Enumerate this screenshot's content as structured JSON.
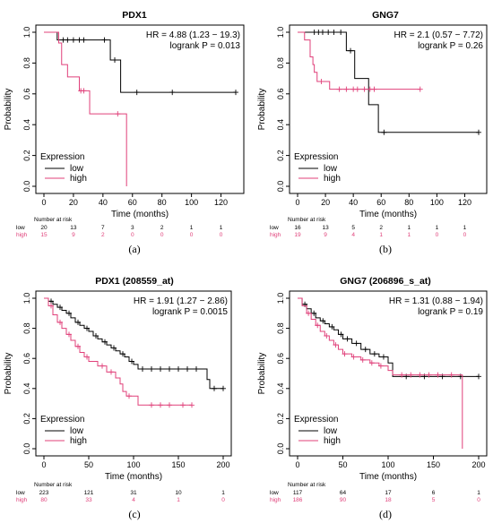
{
  "colors": {
    "low": "#000000",
    "high": "#e0407a"
  },
  "chart_data": [
    {
      "type": "line",
      "title": "PDX1",
      "caption": "(a)",
      "xlabel": "Time (months)",
      "ylabel": "Probability",
      "xlim": [
        0,
        130
      ],
      "ylim": [
        0,
        1
      ],
      "xticks": [
        0,
        20,
        40,
        60,
        80,
        100,
        120
      ],
      "yticks": [
        "0.0",
        "0.2",
        "0.4",
        "0.6",
        "0.8",
        "1.0"
      ],
      "hr_text": "HR = 4.88 (1.23 − 19.3)",
      "logrank_text": "logrank P = 0.013",
      "legend_title": "Expression",
      "risk_header": "Number at risk",
      "risk_times": [
        0,
        20,
        40,
        60,
        80,
        100,
        120
      ],
      "series": [
        {
          "name": "low",
          "color": "#000000",
          "steps": [
            [
              0,
              1.0
            ],
            [
              9,
              0.95
            ],
            [
              45,
              0.82
            ],
            [
              52,
              0.61
            ],
            [
              130,
              0.61
            ]
          ],
          "censors": [
            [
              13,
              0.95
            ],
            [
              16,
              0.95
            ],
            [
              20,
              0.95
            ],
            [
              24,
              0.95
            ],
            [
              27,
              0.95
            ],
            [
              41,
              0.95
            ],
            [
              48,
              0.82
            ],
            [
              63,
              0.61
            ],
            [
              87,
              0.61
            ],
            [
              130,
              0.61
            ]
          ],
          "risk": [
            "20",
            "13",
            "7",
            "3",
            "2",
            "1",
            "1"
          ]
        },
        {
          "name": "high",
          "color": "#e0407a",
          "steps": [
            [
              0,
              1.0
            ],
            [
              10,
              0.93
            ],
            [
              12,
              0.79
            ],
            [
              16,
              0.71
            ],
            [
              24,
              0.62
            ],
            [
              31,
              0.47
            ],
            [
              56,
              0.0
            ]
          ],
          "censors": [
            [
              25,
              0.62
            ],
            [
              27,
              0.62
            ],
            [
              50,
              0.47
            ]
          ],
          "risk": [
            "15",
            "9",
            "2",
            "0",
            "0",
            "0",
            "0"
          ]
        }
      ]
    },
    {
      "type": "line",
      "title": "GNG7",
      "caption": "(b)",
      "xlabel": "Time (months)",
      "ylabel": "Probability",
      "xlim": [
        0,
        130
      ],
      "ylim": [
        0,
        1
      ],
      "xticks": [
        0,
        20,
        40,
        60,
        80,
        100,
        120
      ],
      "yticks": [
        "0.0",
        "0.2",
        "0.4",
        "0.6",
        "0.8",
        "1.0"
      ],
      "hr_text": "HR = 2.1 (0.57 − 7.72)",
      "logrank_text": "logrank P = 0.26",
      "legend_title": "Expression",
      "risk_header": "Number at risk",
      "risk_times": [
        0,
        20,
        40,
        60,
        80,
        100,
        120
      ],
      "series": [
        {
          "name": "low",
          "color": "#000000",
          "steps": [
            [
              0,
              1.0
            ],
            [
              35,
              0.88
            ],
            [
              41,
              0.7
            ],
            [
              51,
              0.53
            ],
            [
              58,
              0.35
            ],
            [
              130,
              0.35
            ]
          ],
          "censors": [
            [
              12,
              1.0
            ],
            [
              15,
              1.0
            ],
            [
              18,
              1.0
            ],
            [
              22,
              1.0
            ],
            [
              26,
              1.0
            ],
            [
              31,
              1.0
            ],
            [
              38,
              0.88
            ],
            [
              62,
              0.35
            ],
            [
              130,
              0.35
            ]
          ],
          "risk": [
            "16",
            "13",
            "5",
            "2",
            "1",
            "1",
            "1"
          ]
        },
        {
          "name": "high",
          "color": "#e0407a",
          "steps": [
            [
              0,
              1.0
            ],
            [
              5,
              0.95
            ],
            [
              9,
              0.84
            ],
            [
              11,
              0.79
            ],
            [
              12,
              0.74
            ],
            [
              14,
              0.68
            ],
            [
              23,
              0.63
            ],
            [
              88,
              0.63
            ]
          ],
          "censors": [
            [
              17,
              0.68
            ],
            [
              30,
              0.63
            ],
            [
              35,
              0.63
            ],
            [
              40,
              0.63
            ],
            [
              43,
              0.63
            ],
            [
              48,
              0.63
            ],
            [
              52,
              0.63
            ],
            [
              55,
              0.63
            ],
            [
              88,
              0.63
            ]
          ],
          "risk": [
            "19",
            "9",
            "4",
            "1",
            "1",
            "0",
            "0"
          ]
        }
      ]
    },
    {
      "type": "line",
      "title": "PDX1 (208559_at)",
      "caption": "(c)",
      "xlabel": "Time (months)",
      "ylabel": "Probability",
      "xlim": [
        0,
        200
      ],
      "ylim": [
        0,
        1
      ],
      "xticks": [
        0,
        50,
        100,
        150,
        200
      ],
      "yticks": [
        "0.0",
        "0.2",
        "0.4",
        "0.6",
        "0.8",
        "1.0"
      ],
      "hr_text": "HR = 1.91 (1.27 − 2.86)",
      "logrank_text": "logrank P = 0.0015",
      "legend_title": "Expression",
      "risk_header": "Number at risk",
      "risk_times": [
        0,
        50,
        100,
        150,
        200
      ],
      "series": [
        {
          "name": "low",
          "color": "#000000",
          "steps": [
            [
              0,
              1.0
            ],
            [
              5,
              0.98
            ],
            [
              10,
              0.96
            ],
            [
              15,
              0.94
            ],
            [
              20,
              0.92
            ],
            [
              25,
              0.9
            ],
            [
              30,
              0.87
            ],
            [
              35,
              0.84
            ],
            [
              40,
              0.82
            ],
            [
              45,
              0.8
            ],
            [
              50,
              0.78
            ],
            [
              55,
              0.75
            ],
            [
              60,
              0.73
            ],
            [
              65,
              0.71
            ],
            [
              70,
              0.69
            ],
            [
              75,
              0.67
            ],
            [
              80,
              0.65
            ],
            [
              85,
              0.63
            ],
            [
              90,
              0.61
            ],
            [
              95,
              0.58
            ],
            [
              100,
              0.56
            ],
            [
              105,
              0.53
            ],
            [
              182,
              0.46
            ],
            [
              185,
              0.4
            ],
            [
              200,
              0.4
            ]
          ],
          "censors": [
            [
              8,
              0.98
            ],
            [
              18,
              0.94
            ],
            [
              28,
              0.9
            ],
            [
              38,
              0.84
            ],
            [
              48,
              0.8
            ],
            [
              58,
              0.75
            ],
            [
              68,
              0.71
            ],
            [
              78,
              0.67
            ],
            [
              88,
              0.63
            ],
            [
              98,
              0.58
            ],
            [
              110,
              0.53
            ],
            [
              120,
              0.53
            ],
            [
              130,
              0.53
            ],
            [
              140,
              0.53
            ],
            [
              150,
              0.53
            ],
            [
              160,
              0.53
            ],
            [
              170,
              0.53
            ],
            [
              190,
              0.4
            ],
            [
              200,
              0.4
            ]
          ],
          "risk": [
            "223",
            "121",
            "31",
            "10",
            "1"
          ]
        },
        {
          "name": "high",
          "color": "#e0407a",
          "steps": [
            [
              0,
              1.0
            ],
            [
              5,
              0.95
            ],
            [
              10,
              0.89
            ],
            [
              15,
              0.84
            ],
            [
              20,
              0.8
            ],
            [
              25,
              0.76
            ],
            [
              30,
              0.72
            ],
            [
              35,
              0.68
            ],
            [
              40,
              0.64
            ],
            [
              45,
              0.61
            ],
            [
              50,
              0.58
            ],
            [
              60,
              0.55
            ],
            [
              70,
              0.51
            ],
            [
              80,
              0.47
            ],
            [
              85,
              0.43
            ],
            [
              88,
              0.38
            ],
            [
              92,
              0.35
            ],
            [
              105,
              0.29
            ],
            [
              165,
              0.29
            ]
          ],
          "censors": [
            [
              8,
              0.95
            ],
            [
              18,
              0.84
            ],
            [
              28,
              0.76
            ],
            [
              38,
              0.68
            ],
            [
              48,
              0.61
            ],
            [
              65,
              0.55
            ],
            [
              75,
              0.51
            ],
            [
              95,
              0.35
            ],
            [
              120,
              0.29
            ],
            [
              130,
              0.29
            ],
            [
              140,
              0.29
            ],
            [
              155,
              0.29
            ],
            [
              165,
              0.29
            ]
          ],
          "risk": [
            "80",
            "33",
            "4",
            "1",
            "0"
          ]
        }
      ]
    },
    {
      "type": "line",
      "title": "GNG7 (206896_s_at)",
      "caption": "(d)",
      "xlabel": "Time (months)",
      "ylabel": "Probability",
      "xlim": [
        0,
        200
      ],
      "ylim": [
        0,
        1
      ],
      "xticks": [
        0,
        50,
        100,
        150,
        200
      ],
      "yticks": [
        "0.0",
        "0.2",
        "0.4",
        "0.6",
        "0.8",
        "1.0"
      ],
      "hr_text": "HR = 1.31 (0.88 − 1.94)",
      "logrank_text": "logrank P = 0.19",
      "legend_title": "Expression",
      "risk_header": "Number at risk",
      "risk_times": [
        0,
        50,
        100,
        150,
        200
      ],
      "series": [
        {
          "name": "low",
          "color": "#000000",
          "steps": [
            [
              0,
              1.0
            ],
            [
              5,
              0.96
            ],
            [
              10,
              0.93
            ],
            [
              15,
              0.9
            ],
            [
              20,
              0.87
            ],
            [
              25,
              0.85
            ],
            [
              30,
              0.83
            ],
            [
              35,
              0.81
            ],
            [
              40,
              0.79
            ],
            [
              45,
              0.76
            ],
            [
              50,
              0.73
            ],
            [
              60,
              0.7
            ],
            [
              70,
              0.66
            ],
            [
              80,
              0.63
            ],
            [
              90,
              0.61
            ],
            [
              100,
              0.57
            ],
            [
              105,
              0.48
            ],
            [
              200,
              0.48
            ]
          ],
          "censors": [
            [
              8,
              0.96
            ],
            [
              18,
              0.9
            ],
            [
              28,
              0.85
            ],
            [
              38,
              0.81
            ],
            [
              48,
              0.76
            ],
            [
              55,
              0.73
            ],
            [
              65,
              0.7
            ],
            [
              75,
              0.66
            ],
            [
              85,
              0.63
            ],
            [
              95,
              0.61
            ],
            [
              120,
              0.48
            ],
            [
              140,
              0.48
            ],
            [
              160,
              0.48
            ],
            [
              180,
              0.48
            ],
            [
              200,
              0.48
            ]
          ],
          "risk": [
            "117",
            "64",
            "17",
            "6",
            "1"
          ]
        },
        {
          "name": "high",
          "color": "#e0407a",
          "steps": [
            [
              0,
              1.0
            ],
            [
              5,
              0.95
            ],
            [
              10,
              0.9
            ],
            [
              15,
              0.86
            ],
            [
              20,
              0.82
            ],
            [
              25,
              0.78
            ],
            [
              30,
              0.75
            ],
            [
              35,
              0.72
            ],
            [
              40,
              0.69
            ],
            [
              45,
              0.66
            ],
            [
              50,
              0.63
            ],
            [
              60,
              0.61
            ],
            [
              70,
              0.59
            ],
            [
              80,
              0.57
            ],
            [
              90,
              0.55
            ],
            [
              100,
              0.52
            ],
            [
              105,
              0.49
            ],
            [
              182,
              0.49
            ],
            [
              182,
              0.0
            ]
          ],
          "censors": [
            [
              12,
              0.9
            ],
            [
              22,
              0.82
            ],
            [
              32,
              0.75
            ],
            [
              42,
              0.69
            ],
            [
              52,
              0.63
            ],
            [
              62,
              0.61
            ],
            [
              72,
              0.59
            ],
            [
              82,
              0.57
            ],
            [
              92,
              0.55
            ],
            [
              115,
              0.49
            ],
            [
              125,
              0.49
            ],
            [
              135,
              0.49
            ],
            [
              145,
              0.49
            ],
            [
              155,
              0.49
            ],
            [
              170,
              0.49
            ]
          ],
          "risk": [
            "186",
            "90",
            "18",
            "5",
            "0"
          ]
        }
      ]
    }
  ]
}
